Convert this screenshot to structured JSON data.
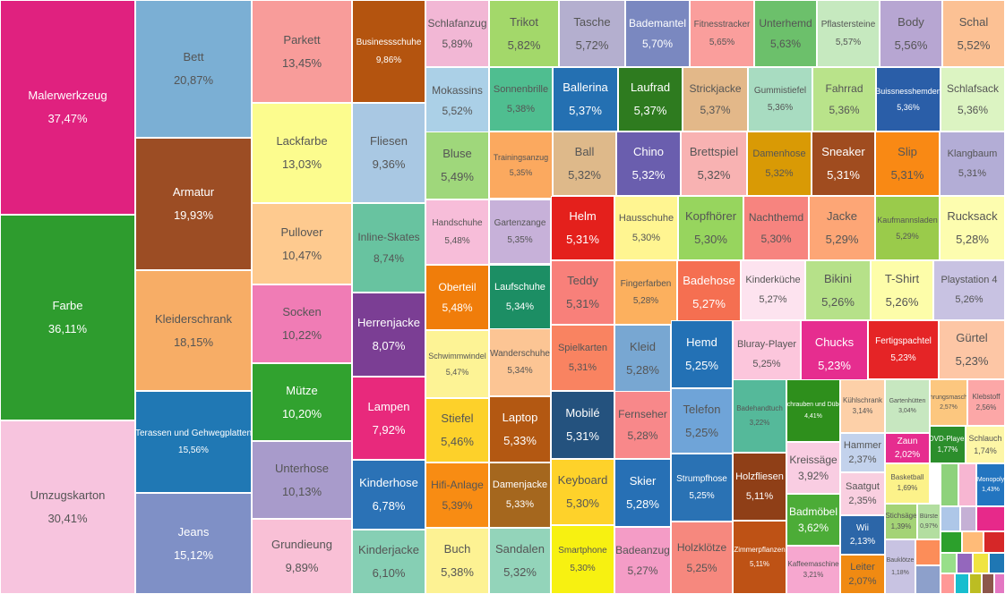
{
  "chart_data": {
    "type": "treemap",
    "title": "",
    "items": [
      {
        "name": "Malerwerkzeug",
        "value": "37,47%",
        "color": "#E0217F"
      },
      {
        "name": "Farbe",
        "value": "36,11%",
        "color": "#2E9C2E"
      },
      {
        "name": "Umzugskarton",
        "value": "30,41%",
        "color": "#F7C4DE"
      },
      {
        "name": "Bett",
        "value": "20,87%",
        "color": "#7BAFD4"
      },
      {
        "name": "Armatur",
        "value": "19,93%",
        "color": "#9C4D24"
      },
      {
        "name": "Kleiderschrank",
        "value": "18,15%",
        "color": "#F7AD66"
      },
      {
        "name": "Terassen und Gehwegplatten",
        "value": "15,56%",
        "color": "#2078B4"
      },
      {
        "name": "Jeans",
        "value": "15,12%",
        "color": "#7F90C6"
      },
      {
        "name": "Parkett",
        "value": "13,45%",
        "color": "#F89C9A"
      },
      {
        "name": "Lackfarbe",
        "value": "13,03%",
        "color": "#FCFC8E"
      },
      {
        "name": "Pullover",
        "value": "10,47%",
        "color": "#FECA8F"
      },
      {
        "name": "Socken",
        "value": "10,22%",
        "color": "#F07CB5"
      },
      {
        "name": "Mütze",
        "value": "10,20%",
        "color": "#31A22F"
      },
      {
        "name": "Unterhose",
        "value": "10,13%",
        "color": "#A89BCB"
      },
      {
        "name": "Grundieung",
        "value": "9,89%",
        "color": "#F9C0D6"
      },
      {
        "name": "Businessschuhe",
        "value": "9,86%",
        "color": "#B4540F"
      },
      {
        "name": "Fliesen",
        "value": "9,36%",
        "color": "#A9C8E3"
      },
      {
        "name": "Inline-Skates",
        "value": "8,74%",
        "color": "#68C3A0"
      },
      {
        "name": "Herrenjacke",
        "value": "8,07%",
        "color": "#7B3E94"
      },
      {
        "name": "Lampen",
        "value": "7,92%",
        "color": "#E8297C"
      },
      {
        "name": "Kinderhose",
        "value": "6,78%",
        "color": "#2B72B6"
      },
      {
        "name": "Kinderjacke",
        "value": "6,10%",
        "color": "#86CFB4"
      },
      {
        "name": "Schlafanzug",
        "value": "5,89%",
        "color": "#F2B7D5"
      },
      {
        "name": "Trikot",
        "value": "5,82%",
        "color": "#A3D86A"
      },
      {
        "name": "Tasche",
        "value": "5,72%",
        "color": "#B4AFCF"
      },
      {
        "name": "Bademantel",
        "value": "5,70%",
        "color": "#7A88C0"
      },
      {
        "name": "Fitnesstracker",
        "value": "5,65%",
        "color": "#FA9E9C"
      },
      {
        "name": "Unterhemd",
        "value": "5,63%",
        "color": "#6CC06B"
      },
      {
        "name": "Pflastersteine",
        "value": "5,57%",
        "color": "#C6E9BF"
      },
      {
        "name": "Body",
        "value": "5,56%",
        "color": "#B7A6D2"
      },
      {
        "name": "Schal",
        "value": "5,52%",
        "color": "#FCC194"
      },
      {
        "name": "Mokassins",
        "value": "5,52%",
        "color": "#ABD0E7"
      },
      {
        "name": "Sonnenbrille",
        "value": "5,38%",
        "color": "#4FBE90"
      },
      {
        "name": "Ballerina",
        "value": "5,37%",
        "color": "#2470B2"
      },
      {
        "name": "Laufrad",
        "value": "5,37%",
        "color": "#2E7B1F"
      },
      {
        "name": "Strickjacke",
        "value": "5,37%",
        "color": "#E3B889"
      },
      {
        "name": "Gummistiefel",
        "value": "5,36%",
        "color": "#A8DCC1"
      },
      {
        "name": "Fahrrad",
        "value": "5,36%",
        "color": "#B9E38A"
      },
      {
        "name": "Buissnesshemden",
        "value": "5,36%",
        "color": "#2A5EA8"
      },
      {
        "name": "Schlafsack",
        "value": "5,36%",
        "color": "#DCF4C2"
      },
      {
        "name": "Bluse",
        "value": "5,49%",
        "color": "#9FD77B"
      },
      {
        "name": "Trainingsanzug",
        "value": "5,35%",
        "color": "#FBA95F"
      },
      {
        "name": "Ball",
        "value": "5,32%",
        "color": "#DEB98A"
      },
      {
        "name": "Chino",
        "value": "5,32%",
        "color": "#6A5EAE"
      },
      {
        "name": "Brettspiel",
        "value": "5,32%",
        "color": "#F8B2B2"
      },
      {
        "name": "Damenhose",
        "value": "5,32%",
        "color": "#D99A05"
      },
      {
        "name": "Sneaker",
        "value": "5,31%",
        "color": "#A04C1F"
      },
      {
        "name": "Slip",
        "value": "5,31%",
        "color": "#F98914"
      },
      {
        "name": "Klangbaum",
        "value": "5,31%",
        "color": "#B3ADD6"
      },
      {
        "name": "Handschuhe",
        "value": "5,48%",
        "color": "#F7BDD9"
      },
      {
        "name": "Gartenzange",
        "value": "5,35%",
        "color": "#C7B1D9"
      },
      {
        "name": "Helm",
        "value": "5,31%",
        "color": "#E4201C"
      },
      {
        "name": "Hausschuhe",
        "value": "5,30%",
        "color": "#FFF591"
      },
      {
        "name": "Kopfhörer",
        "value": "5,30%",
        "color": "#97D55E"
      },
      {
        "name": "Nachthemd",
        "value": "5,30%",
        "color": "#F7847F"
      },
      {
        "name": "Jacke",
        "value": "5,29%",
        "color": "#FDA676"
      },
      {
        "name": "Kaufmannsladen",
        "value": "5,29%",
        "color": "#9ACB4B"
      },
      {
        "name": "Rucksack",
        "value": "5,28%",
        "color": "#FDFDAF"
      },
      {
        "name": "Oberteil",
        "value": "5,48%",
        "color": "#F07D0A"
      },
      {
        "name": "Laufschuhe",
        "value": "5,34%",
        "color": "#1C8E64"
      },
      {
        "name": "Teddy",
        "value": "5,31%",
        "color": "#F8807A"
      },
      {
        "name": "Fingerfarben",
        "value": "5,28%",
        "color": "#FCB05E"
      },
      {
        "name": "Badehose",
        "value": "5,27%",
        "color": "#F56F51"
      },
      {
        "name": "Kinderküche",
        "value": "5,27%",
        "color": "#FDE3EF"
      },
      {
        "name": "Bikini",
        "value": "5,26%",
        "color": "#B6E189"
      },
      {
        "name": "T-Shirt",
        "value": "5,26%",
        "color": "#FDFDA9"
      },
      {
        "name": "Playstation 4",
        "value": "5,26%",
        "color": "#C8C2E2"
      },
      {
        "name": "Schwimmwindel",
        "value": "5,47%",
        "color": "#FDF395"
      },
      {
        "name": "Wanderschuhe",
        "value": "5,34%",
        "color": "#FCC594"
      },
      {
        "name": "Spielkarten",
        "value": "5,31%",
        "color": "#F98361"
      },
      {
        "name": "Kleid",
        "value": "5,28%",
        "color": "#78A7D2"
      },
      {
        "name": "Hemd",
        "value": "5,25%",
        "color": "#2371B5"
      },
      {
        "name": "Bluray-Player",
        "value": "5,25%",
        "color": "#FCC6DC"
      },
      {
        "name": "Chucks",
        "value": "5,23%",
        "color": "#E62D8F"
      },
      {
        "name": "Fertigspachtel",
        "value": "5,23%",
        "color": "#E52426"
      },
      {
        "name": "Gürtel",
        "value": "5,23%",
        "color": "#FDC6A5"
      },
      {
        "name": "Stiefel",
        "value": "5,46%",
        "color": "#FDD12A"
      },
      {
        "name": "Laptop",
        "value": "5,33%",
        "color": "#B35812"
      },
      {
        "name": "Mobilé",
        "value": "5,31%",
        "color": "#24527E"
      },
      {
        "name": "Fernseher",
        "value": "5,28%",
        "color": "#F8888A"
      },
      {
        "name": "Telefon",
        "value": "5,25%",
        "color": "#6FA4D8"
      },
      {
        "name": "Badehandtuch",
        "value": "3,22%",
        "color": "#55B99A"
      },
      {
        "name": "Schrauben und Dübel",
        "value": "4,41%",
        "color": "#2E8F1C"
      },
      {
        "name": "Kühlschrank",
        "value": "3,14%",
        "color": "#FDD0A8"
      },
      {
        "name": "Gartenhütten",
        "value": "3,04%",
        "color": "#C7E7C0"
      },
      {
        "name": "Gehrungsmaschine",
        "value": "2,57%",
        "color": "#FCC77F"
      },
      {
        "name": "Klebstoff",
        "value": "2,56%",
        "color": "#FCA7A7"
      },
      {
        "name": "Kreissäge",
        "value": "3,92%",
        "color": "#F9CDE2"
      },
      {
        "name": "Hammer",
        "value": "2,37%",
        "color": "#C3D2EC"
      },
      {
        "name": "Zaun",
        "value": "2,02%",
        "color": "#E62D8F"
      },
      {
        "name": "DVD-Player",
        "value": "1,77%",
        "color": "#2C8E2C"
      },
      {
        "name": "Schlauch",
        "value": "1,74%",
        "color": "#FDF6A6"
      },
      {
        "name": "Hifi-Anlage",
        "value": "5,39%",
        "color": "#F88C13"
      },
      {
        "name": "Damenjacke",
        "value": "5,33%",
        "color": "#A5671E"
      },
      {
        "name": "Keyboard",
        "value": "5,30%",
        "color": "#FED22A"
      },
      {
        "name": "Skier",
        "value": "5,28%",
        "color": "#2770B5"
      },
      {
        "name": "Strumpfhose",
        "value": "5,25%",
        "color": "#2A72B4"
      },
      {
        "name": "Holzfliesen",
        "value": "5,11%",
        "color": "#8F3F17"
      },
      {
        "name": "Badmöbel",
        "value": "3,62%",
        "color": "#4CAC37"
      },
      {
        "name": "Saatgut",
        "value": "2,35%",
        "color": "#F9CFE0"
      },
      {
        "name": "Basketball",
        "value": "1,69%",
        "color": "#FCF28A"
      },
      {
        "name": "Wii",
        "value": "2,13%",
        "color": "#2C66A8"
      },
      {
        "name": "Stichsäge",
        "value": "1,39%",
        "color": "#A4D376"
      },
      {
        "name": "Bürste",
        "value": "0,97%",
        "color": "#B3DEA0"
      },
      {
        "name": "Buch",
        "value": "5,38%",
        "color": "#FDF293"
      },
      {
        "name": "Sandalen",
        "value": "5,32%",
        "color": "#93D4BA"
      },
      {
        "name": "Smartphone",
        "value": "5,30%",
        "color": "#F7F111"
      },
      {
        "name": "Badeanzug",
        "value": "5,27%",
        "color": "#F49CC6"
      },
      {
        "name": "Holzklötze",
        "value": "5,25%",
        "color": "#F6887E"
      },
      {
        "name": "Zimmerpflanzen",
        "value": "5,11%",
        "color": "#BE5215"
      },
      {
        "name": "Kaffeemaschine",
        "value": "3,21%",
        "color": "#F6A7CF"
      },
      {
        "name": "Leiter",
        "value": "2,07%",
        "color": "#F08A12"
      },
      {
        "name": "Bauklötze",
        "value": "1,18%",
        "color": "#C8C3E2"
      },
      {
        "name": "Monopoly",
        "value": "1,43%",
        "color": "#2375C0"
      }
    ]
  }
}
